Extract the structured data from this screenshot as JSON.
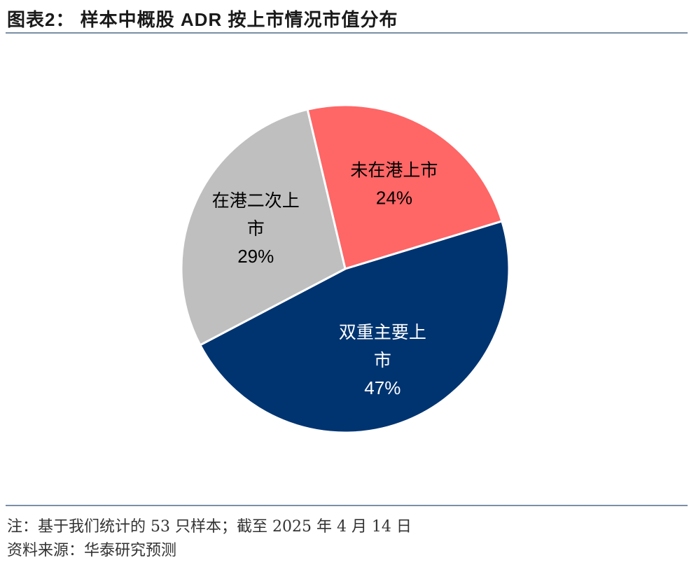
{
  "header": {
    "title": "图表2：  样本中概股 ADR 按上市情况市值分布"
  },
  "footer": {
    "note": "注：基于我们统计的 53 只样本；截至 2025 年 4 月 14 日",
    "source": "资料来源：华泰研究预测"
  },
  "chart_data": {
    "type": "pie",
    "title": "样本中概股 ADR 按上市情况市值分布",
    "unit": "%",
    "slices": [
      {
        "label_lines": [
          "未在港上市"
        ],
        "value": 24,
        "value_label": "24%",
        "color": "#ff6666",
        "label_color": "#000000"
      },
      {
        "label_lines": [
          "双重主要上",
          "市"
        ],
        "value": 47,
        "value_label": "47%",
        "color": "#003471",
        "label_color": "#ffffff"
      },
      {
        "label_lines": [
          "在港二次上",
          "市"
        ],
        "value": 29,
        "value_label": "29%",
        "color": "#bfbfbf",
        "label_color": "#000000"
      }
    ]
  }
}
